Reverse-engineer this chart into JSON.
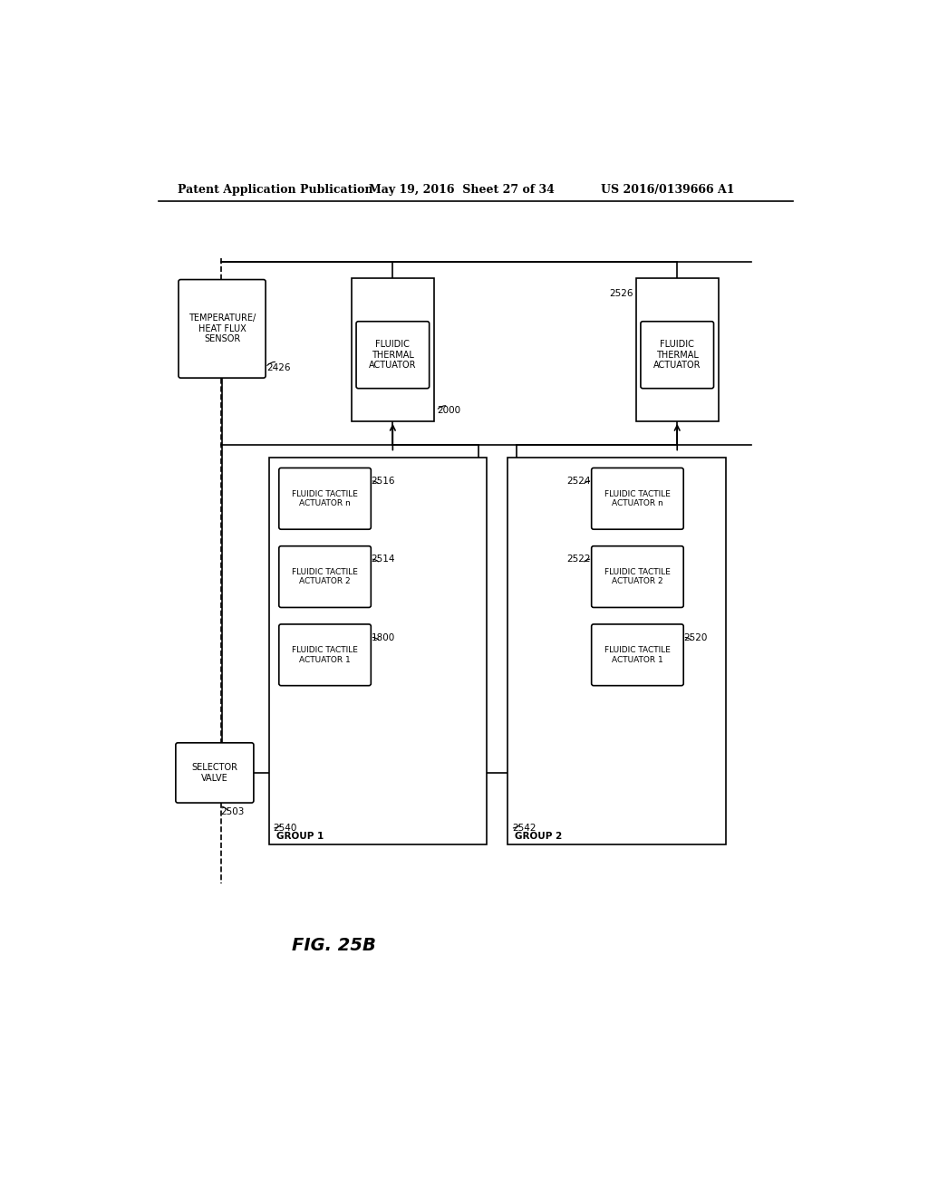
{
  "title_left": "Patent Application Publication",
  "title_center": "May 19, 2016  Sheet 27 of 34",
  "title_right": "US 2016/0139666 A1",
  "fig_label": "FIG. 25B",
  "background_color": "#ffffff"
}
